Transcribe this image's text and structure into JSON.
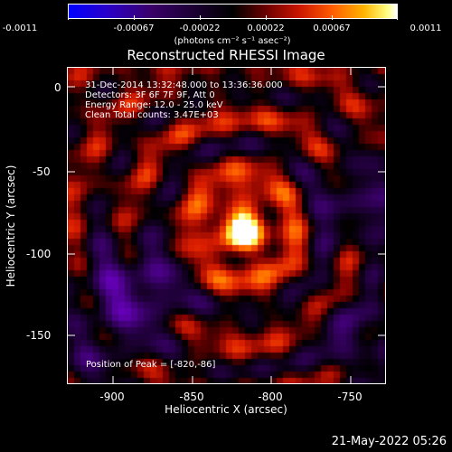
{
  "colorbar": {
    "tick_labels": [
      "-0.0011",
      "-0.00067",
      "-0.00022",
      "0.00022",
      "0.00067",
      "0.0011"
    ],
    "unit_label": "(photons cm⁻² s⁻¹ asec⁻²)",
    "range": [
      -0.0011,
      0.0011
    ]
  },
  "plot": {
    "title": "Reconstructed RHESSI Image",
    "annotation_lines": [
      "31-Dec-2014 13:32:48.000 to 13:36:36.000",
      "Detectors: 3F 6F 7F 9F, Att 0",
      "Energy Range: 12.0 - 25.0 keV",
      "Clean     Total counts: 3.47E+03"
    ],
    "peak_text": "Position of Peak = [-820,-86]",
    "xlabel": "Heliocentric X (arcsec)",
    "ylabel": "Heliocentric Y (arcsec)",
    "x_ticks": [
      "-900",
      "-850",
      "-800",
      "-750"
    ],
    "y_ticks": [
      "0",
      "-50",
      "-100",
      "-150"
    ]
  },
  "chart_data": {
    "type": "heatmap",
    "title": "Reconstructed RHESSI Image",
    "xlabel": "Heliocentric X (arcsec)",
    "ylabel": "Heliocentric Y (arcsec)",
    "xlim": [
      -927,
      -732
    ],
    "ylim": [
      -179,
      12
    ],
    "peak": [
      -820,
      -86
    ],
    "value_range": [
      -0.0011,
      0.0011
    ]
  },
  "footer": {
    "timestamp": "21-May-2022 05:26"
  }
}
